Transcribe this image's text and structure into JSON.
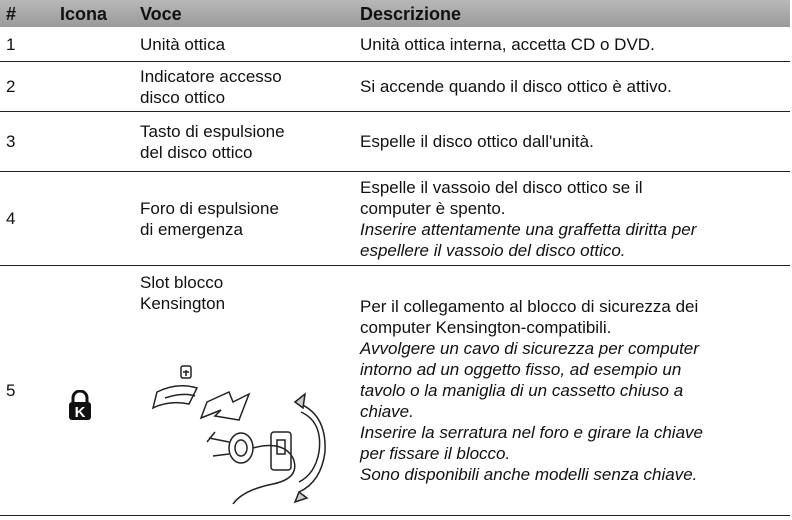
{
  "table": {
    "header": [
      "#",
      "Icona",
      "Voce",
      "Descrizione"
    ],
    "rows": [
      {
        "num": "1",
        "voce": [
          "Unità ottica"
        ],
        "descrizione": [
          {
            "italic": false,
            "lines": [
              "Unità ottica interna, accetta CD o DVD."
            ]
          }
        ]
      },
      {
        "num": "2",
        "voce": [
          "Indicatore accesso",
          "disco ottico"
        ],
        "descrizione": [
          {
            "italic": false,
            "lines": [
              "Si accende quando il disco ottico è attivo."
            ]
          }
        ]
      },
      {
        "num": "3",
        "voce": [
          "Tasto di espulsione",
          "del disco ottico"
        ],
        "descrizione": [
          {
            "italic": false,
            "lines": [
              "Espelle il disco ottico dall'unità."
            ]
          }
        ]
      },
      {
        "num": "4",
        "voce": [
          "Foro di espulsione",
          "di emergenza"
        ],
        "descrizione": [
          {
            "italic": false,
            "lines": [
              "Espelle il vassoio del disco ottico se il",
              "computer è spento."
            ]
          },
          {
            "italic": true,
            "lines": [
              "Inserire attentamente una graffetta diritta per",
              "espellere il vassoio del disco ottico."
            ]
          }
        ]
      },
      {
        "num": "5",
        "voce": [
          "Slot blocco",
          "Kensington"
        ],
        "descrizione": [
          {
            "italic": false,
            "lines": [
              "Per il collegamento al blocco di sicurezza dei",
              "computer Kensington-compatibili."
            ]
          },
          {
            "italic": true,
            "lines": [
              "Avvolgere un cavo di sicurezza per computer",
              "intorno ad un oggetto fisso, ad esempio un",
              "tavolo o la maniglia di un cassetto chiuso a",
              "chiave."
            ]
          },
          {
            "italic": true,
            "lines": [
              "Inserire la serratura nel foro e girare la chiave",
              "per fissare il blocco."
            ]
          },
          {
            "italic": true,
            "lines": [
              "Sono disponibili anche modelli senza chiave."
            ]
          }
        ]
      }
    ]
  }
}
